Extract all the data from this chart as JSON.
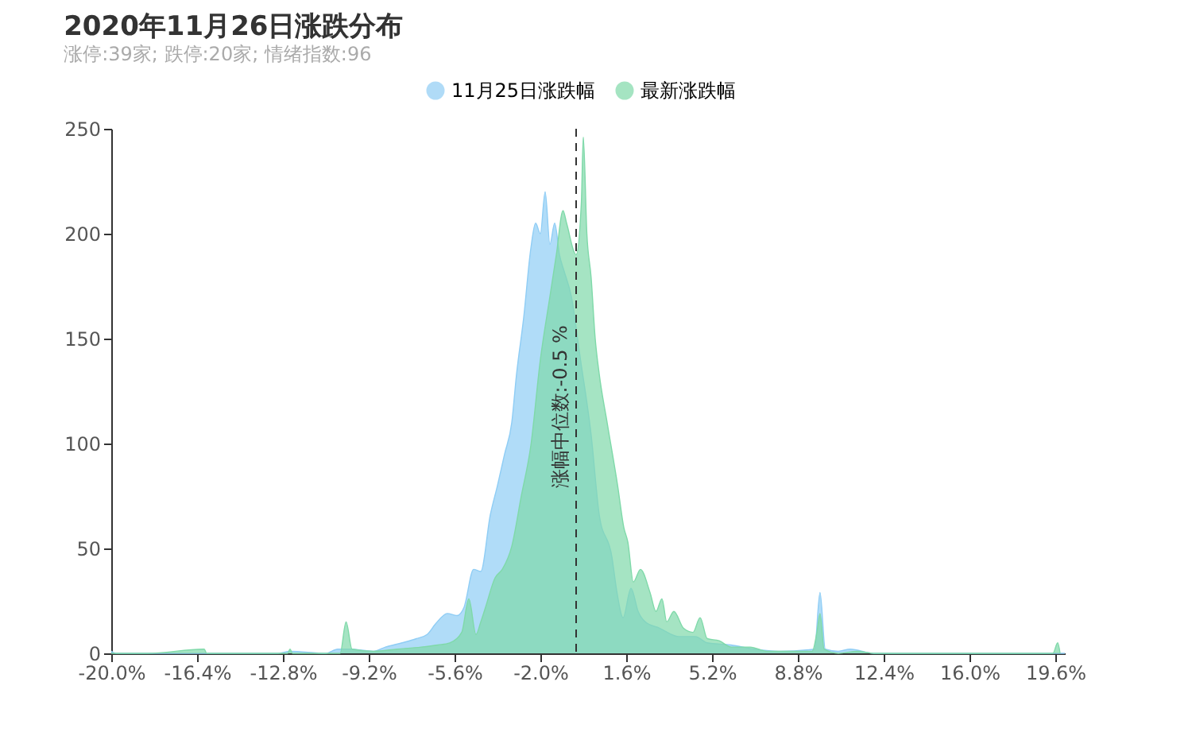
{
  "chart_data": {
    "type": "area",
    "title": "2020年11月26日涨跌分布",
    "subtitle": "涨停:39家; 跌停:20家; 情绪指数:96",
    "legend": "top",
    "grid": false,
    "line_style": "solid",
    "xlim": [
      -20,
      20
    ],
    "ylim": [
      0,
      250
    ],
    "yticks": [
      0,
      50,
      100,
      150,
      200,
      250
    ],
    "xticks": [
      {
        "value": -20,
        "label": "-20.0%"
      },
      {
        "value": -16.4,
        "label": "-16.4%"
      },
      {
        "value": -12.8,
        "label": "-12.8%"
      },
      {
        "value": -9.2,
        "label": "-9.2%"
      },
      {
        "value": -5.6,
        "label": "-5.6%"
      },
      {
        "value": -2,
        "label": "-2.0%"
      },
      {
        "value": 1.6,
        "label": "1.6%"
      },
      {
        "value": 5.2,
        "label": "5.2%"
      },
      {
        "value": 8.8,
        "label": "8.8%"
      },
      {
        "value": 12.4,
        "label": "12.4%"
      },
      {
        "value": 16,
        "label": "16.0%"
      },
      {
        "value": 19.6,
        "label": "19.6%"
      }
    ],
    "ref_lines": [
      {
        "axis": "x",
        "value": -0.5,
        "label": "涨幅中位数:-0.5 %",
        "color": "#333333",
        "line_style": "dashed"
      }
    ],
    "series": [
      {
        "name": "11月25日涨跌幅",
        "color": "#8fcdf5",
        "x": [
          -20,
          -19.8,
          -13,
          -12.5,
          -11,
          -10.5,
          -10,
          -9,
          -8.5,
          -7.8,
          -7.2,
          -6.75,
          -6.4,
          -5.9,
          -5.5,
          -5.2,
          -4.8,
          -4.5,
          -4.1,
          -3.8,
          -3.5,
          -3.2,
          -3.0,
          -2.7,
          -2.4,
          -2.2,
          -2.0,
          -1.8,
          -1.6,
          -1.4,
          -1.2,
          -1.0,
          -0.7,
          -0.33,
          0.13,
          0.47,
          1.0,
          1.2,
          1.47,
          1.8,
          2.1,
          2.4,
          3,
          3.8,
          4.5,
          5,
          6,
          7,
          8,
          9.5,
          9.73,
          9.95,
          10.5,
          11,
          12,
          20
        ],
        "values": [
          1,
          0,
          0,
          1,
          0,
          2,
          2,
          1,
          3,
          5,
          7,
          9,
          14,
          19,
          18,
          22,
          40,
          39,
          66,
          80,
          95,
          110,
          133,
          160,
          193,
          205,
          200,
          220,
          195,
          205,
          190,
          182,
          170,
          141,
          104,
          66,
          46,
          30,
          17,
          31,
          20,
          15,
          12,
          8,
          8,
          5,
          4,
          2,
          1,
          2,
          29,
          2,
          1,
          2,
          0,
          0
        ]
      },
      {
        "name": "最新涨跌幅",
        "color": "#7fd9a9",
        "x": [
          -20,
          -19.6,
          -18.5,
          -16.1,
          -16.0,
          -12.6,
          -12.5,
          -12.4,
          -10.4,
          -10.15,
          -9.9,
          -9,
          -8,
          -7,
          -6.3,
          -5.8,
          -5.3,
          -5.0,
          -4.7,
          -4.5,
          -4.3,
          -3.9,
          -3.6,
          -3.2,
          -2.8,
          -2.4,
          -2.0,
          -1.6,
          -1.33,
          -1.05,
          -0.9,
          -0.5,
          -0.28,
          -0.2,
          -0.05,
          0.13,
          0.3,
          0.47,
          0.8,
          1.24,
          1.5,
          1.67,
          1.9,
          2.2,
          2.6,
          2.85,
          3.1,
          3.3,
          3.6,
          4.0,
          4.4,
          4.7,
          5.0,
          5.5,
          6.0,
          6.8,
          7.5,
          9.4,
          9.6,
          9.73,
          9.9,
          10.5,
          11.3,
          12,
          19.5,
          19.7,
          19.8
        ],
        "values": [
          0,
          0,
          0,
          2,
          0,
          0,
          2,
          0,
          0,
          15,
          2,
          1,
          2,
          3,
          4,
          5,
          10,
          26,
          9,
          15,
          22,
          36,
          40,
          51,
          75,
          99,
          140,
          170,
          190,
          211,
          205,
          190,
          215,
          246,
          200,
          179,
          150,
          133,
          110,
          80,
          60,
          53,
          34,
          40,
          29,
          20,
          26,
          15,
          20,
          12,
          10,
          17,
          7,
          6,
          3,
          3,
          1,
          1,
          10,
          19,
          2,
          0,
          1,
          0,
          0,
          5,
          0
        ]
      }
    ]
  }
}
